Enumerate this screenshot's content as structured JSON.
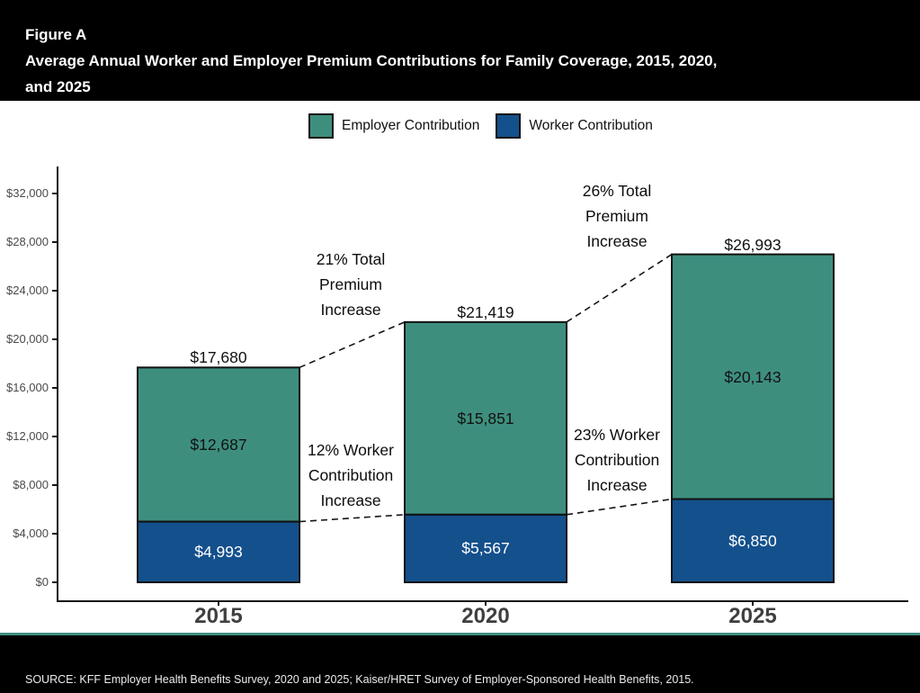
{
  "header": {
    "figure_label": "Figure A",
    "title_line1": "Average Annual Worker and Employer Premium Contributions for Family Coverage, 2015, 2020,",
    "title_line2": "and 2025"
  },
  "legend": {
    "items": [
      {
        "label": "Employer Contribution",
        "color": "#3E8E7E"
      },
      {
        "label": "Worker Contribution",
        "color": "#14508C"
      }
    ]
  },
  "chart_data": {
    "type": "bar",
    "stacked": true,
    "title": "Average Annual Worker and Employer Premium Contributions for Family Coverage, 2015, 2020, and 2025",
    "xlabel": "",
    "ylabel": "",
    "categories": [
      "2015",
      "2020",
      "2025"
    ],
    "series": [
      {
        "name": "Worker Contribution",
        "color": "#14508C",
        "values": [
          4993,
          5567,
          6850
        ],
        "labels": [
          "$4,993",
          "$5,567",
          "$6,850"
        ]
      },
      {
        "name": "Employer Contribution",
        "color": "#3E8E7E",
        "values": [
          12687,
          15851,
          20143
        ],
        "labels": [
          "$12,687",
          "$15,851",
          "$20,143"
        ]
      }
    ],
    "totals": [
      17680,
      21419,
      26993
    ],
    "total_labels": [
      "$17,680",
      "$21,419",
      "$26,993"
    ],
    "ylim": [
      0,
      34000
    ],
    "yticks": [
      0,
      4000,
      8000,
      12000,
      16000,
      20000,
      24000,
      28000,
      32000
    ],
    "ytick_labels": [
      "$0",
      "$4,000",
      "$8,000",
      "$12,000",
      "$16,000",
      "$20,000",
      "$24,000",
      "$28,000",
      "$32,000"
    ],
    "grid": false,
    "legend_position": "top",
    "annotations": [
      {
        "lines": [
          "21% Total",
          "Premium",
          "Increase"
        ]
      },
      {
        "lines": [
          "12% Worker",
          "Contribution",
          "Increase"
        ]
      },
      {
        "lines": [
          "26% Total",
          "Premium",
          "Increase"
        ]
      },
      {
        "lines": [
          "23% Worker",
          "Contribution",
          "Increase"
        ]
      }
    ]
  },
  "footer": {
    "source": "SOURCE: KFF Employer Health Benefits Survey, 2020 and 2025; Kaiser/HRET Survey of Employer-Sponsored Health Benefits, 2015."
  }
}
